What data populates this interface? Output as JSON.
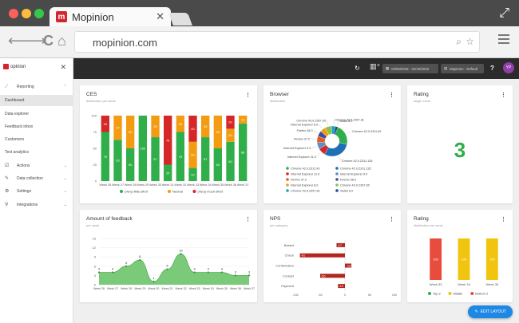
{
  "browser": {
    "tab_title": "Mopinion",
    "tab_logo": "m",
    "url": "mopinion.com"
  },
  "sidebar": {
    "logo_text": "opinion",
    "items": [
      {
        "label": "Reporting",
        "icon": "chart-line-icon",
        "chevron": "⌃"
      },
      {
        "label": "Dashboard",
        "active": true
      },
      {
        "label": "Data explorer"
      },
      {
        "label": "Feedback inbox"
      },
      {
        "label": "Customers"
      },
      {
        "label": "Test analytics"
      },
      {
        "label": "Actions",
        "icon": "check-square-icon",
        "chevron": "⌄"
      },
      {
        "label": "Data collection",
        "icon": "edit-icon",
        "chevron": "⌄"
      },
      {
        "label": "Settings",
        "icon": "gear-icon",
        "chevron": "⌄"
      },
      {
        "label": "Integrations",
        "icon": "integrations-icon",
        "chevron": "⌄"
      }
    ]
  },
  "topbar": {
    "date_range": "02/06/2019 - 31/10/2019",
    "dashboard_select": "Mopinion - Default",
    "help": "?",
    "avatar": "YP"
  },
  "cards": {
    "ces": {
      "title": "CES",
      "subtitle": "distribution per week"
    },
    "browser": {
      "title": "Browser",
      "subtitle": "distribution"
    },
    "rating1": {
      "title": "Rating",
      "subtitle": "single score",
      "value": "3"
    },
    "feedback": {
      "title": "Amount of feedback",
      "subtitle": "per week"
    },
    "nps": {
      "title": "NPS",
      "subtitle": "per category"
    },
    "rating2": {
      "title": "Rating",
      "subtitle": "distribution per week"
    }
  },
  "fab_label": "EDIT LAYOUT",
  "chart_data": [
    {
      "type": "bar",
      "title": "CES",
      "subtitle": "distribution per week",
      "categories": [
        "Week 26",
        "Week 27",
        "Week 28",
        "Week 29",
        "Week 30",
        "Week 31",
        "Week 32",
        "Week 33",
        "Week 34",
        "Week 35",
        "Week 36",
        "Week 37"
      ],
      "series": [
        {
          "name": "(Very) little effort",
          "color": "#2fae4a",
          "values": [
            75,
            63,
            50,
            100,
            67,
            25,
            75,
            20,
            67,
            50,
            60,
            88
          ]
        },
        {
          "name": "Neutral",
          "color": "#f39c12",
          "values": [
            0,
            37,
            50,
            0,
            33,
            0,
            25,
            40,
            33,
            50,
            20,
            12
          ]
        },
        {
          "name": "(Very) much effort",
          "color": "#d62728",
          "values": [
            25,
            0,
            0,
            0,
            0,
            75,
            0,
            40,
            0,
            0,
            20,
            0
          ]
        }
      ],
      "ylim": [
        0,
        100
      ],
      "yticks": [
        0,
        25,
        50,
        75,
        100
      ],
      "stacked": true
    },
    {
      "type": "pie",
      "title": "Browser",
      "subtitle": "distribution",
      "donut": true,
      "slices": [
        {
          "label": "Chrome 42.0.2311.90",
          "color": "#2fae4a",
          "value": 22
        },
        {
          "label": "Chrome 42.0.2311.135",
          "color": "#1f6fb4",
          "value": 30
        },
        {
          "label": "Internet Explorer 11.0",
          "color": "#d62728",
          "value": 8
        },
        {
          "label": "Internet Explorer 9.0",
          "color": "#5c8fc9",
          "value": 7
        },
        {
          "label": "Firefox 37.0",
          "color": "#e85a1e",
          "value": 7
        },
        {
          "label": "Firefox 38.0",
          "color": "#3b4da0",
          "value": 6
        },
        {
          "label": "Internet Explorer 8.0",
          "color": "#f39c12",
          "value": 6
        },
        {
          "label": "Chrome 43.0.2357.65",
          "color": "#8bc34a",
          "value": 7
        },
        {
          "label": "Chrome 43.0.2357.81",
          "color": "#13a3c4",
          "value": 4
        },
        {
          "label": "Safari 8.0",
          "color": "#1b4e8a",
          "value": 3
        }
      ]
    },
    {
      "type": "area",
      "title": "Amount of feedback",
      "subtitle": "per week",
      "categories": [
        "Week 26",
        "Week 27",
        "Week 28",
        "Week 29",
        "Week 30",
        "Week 31",
        "Week 32",
        "Week 33",
        "Week 34",
        "Week 35",
        "Week 36",
        "Week 37"
      ],
      "values": [
        4,
        4,
        6,
        8,
        1,
        5,
        10,
        4,
        4,
        4,
        3,
        3
      ],
      "point_labels": [
        "4",
        "4",
        "6",
        "8",
        "1",
        "5",
        "10",
        "4",
        "4",
        "4",
        "3",
        "3"
      ],
      "yticks": [
        0,
        3,
        6,
        9,
        12,
        15
      ],
      "ylim": [
        0,
        15
      ],
      "color": "#6cc46b"
    },
    {
      "type": "bar",
      "orientation": "horizontal",
      "title": "NPS",
      "subtitle": "per category",
      "categories": [
        "Basket",
        "Check",
        "Confirmation",
        "Contact",
        "Payment"
      ],
      "values": [
        -17,
        -91,
        13,
        -50,
        -14
      ],
      "xticks": [
        -100,
        -50,
        0,
        50,
        100
      ],
      "xlim": [
        -100,
        100
      ],
      "color": "#b3261e"
    },
    {
      "type": "bar",
      "title": "Rating",
      "subtitle": "distribution per week",
      "categories": [
        "Week 33",
        "Week 34",
        "Week 35"
      ],
      "series": [
        {
          "name": "Top 2",
          "color": "#2fae4a",
          "values": [
            0,
            0,
            0
          ]
        },
        {
          "name": "Middle",
          "color": "#f1c40f",
          "values": [
            0,
            100,
            100
          ]
        },
        {
          "name": "Bottom 2",
          "color": "#e74c3c",
          "values": [
            100,
            0,
            0
          ]
        }
      ],
      "stacked": true,
      "ylim": [
        0,
        100
      ]
    }
  ]
}
